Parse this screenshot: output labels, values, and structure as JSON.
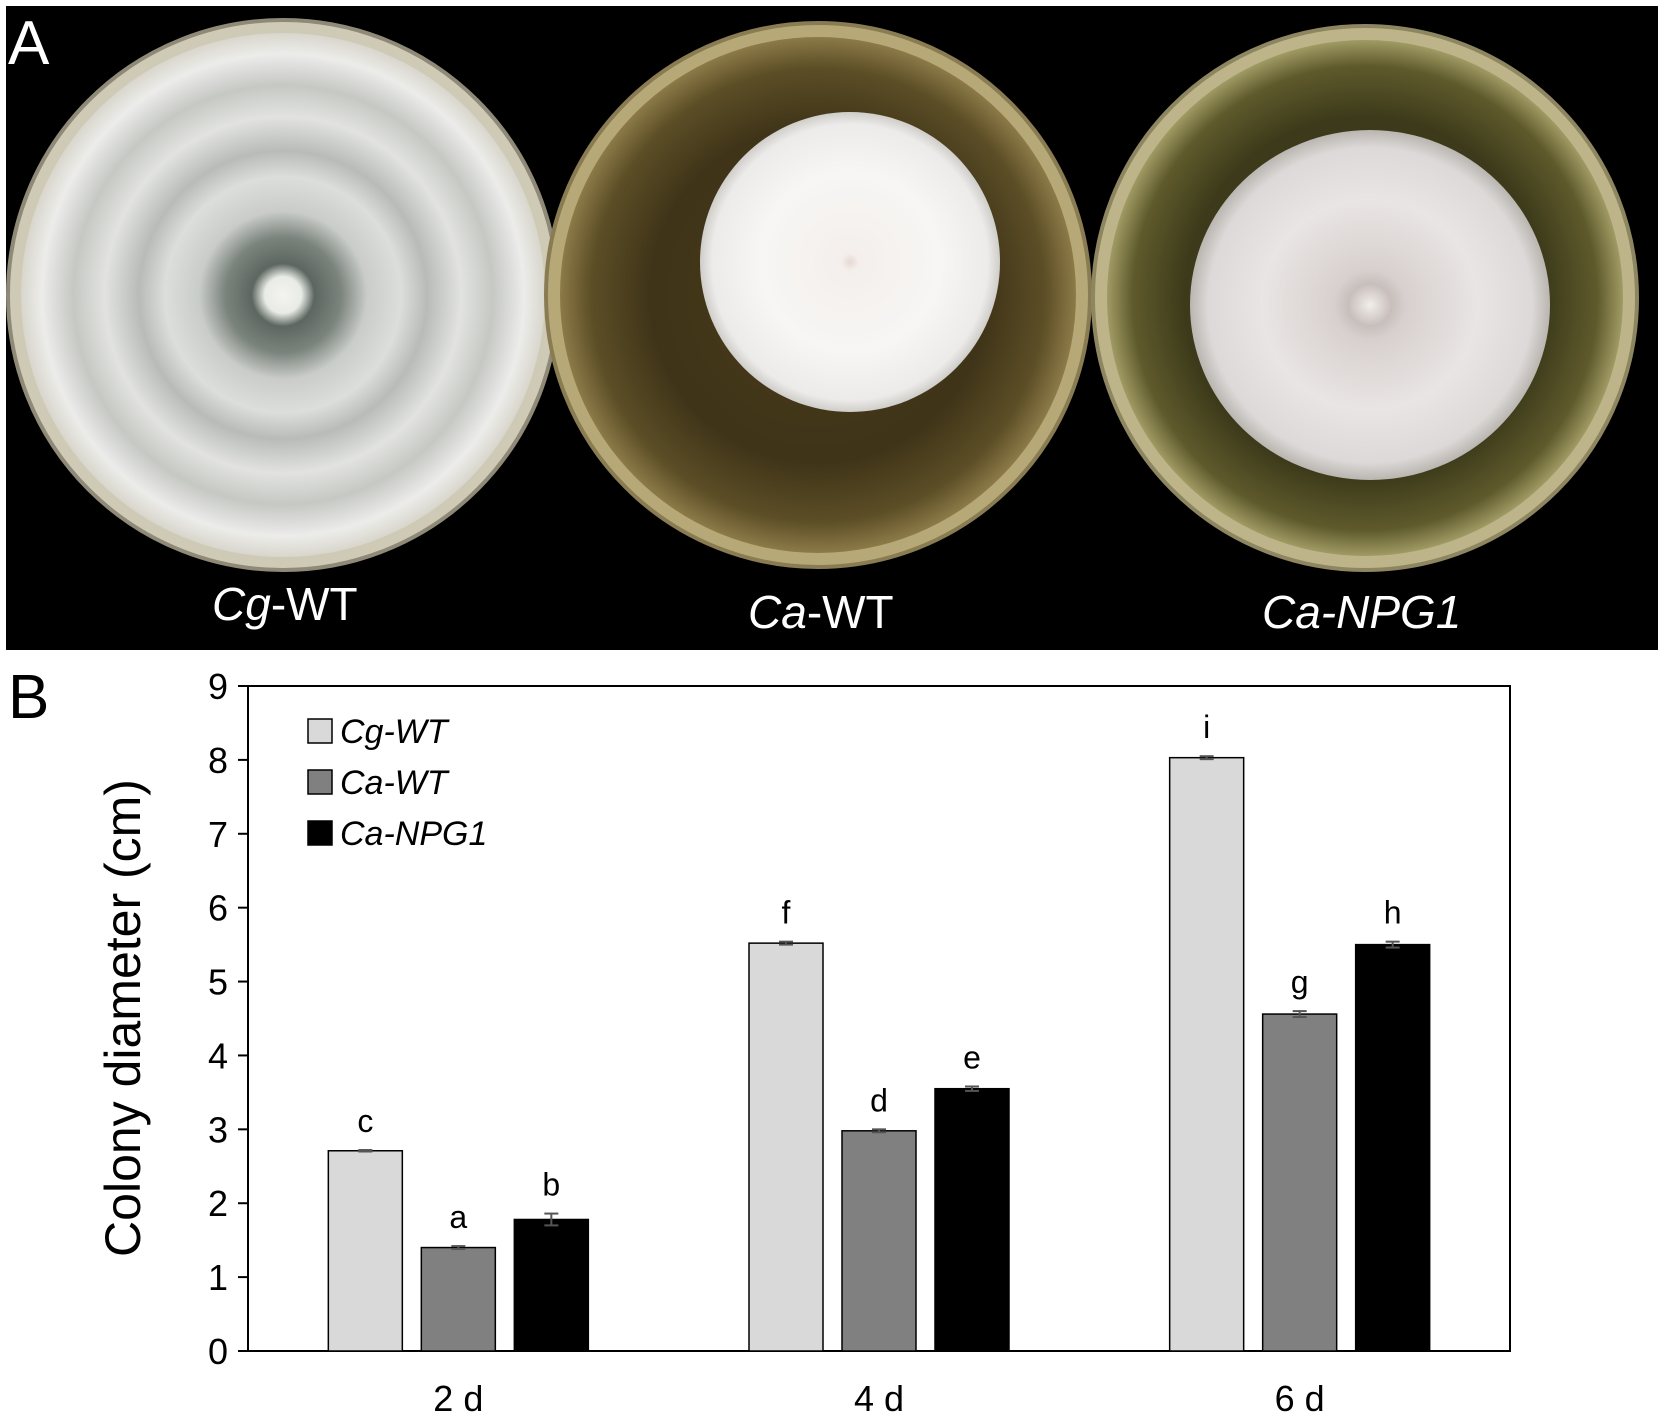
{
  "panel_a": {
    "label": "A",
    "plates": [
      {
        "italic": "Cg",
        "rest": "-WT"
      },
      {
        "italic": "Ca",
        "rest": "-WT"
      },
      {
        "italic": "Ca-NPG1",
        "rest": ""
      }
    ]
  },
  "panel_b": {
    "label": "B"
  },
  "chart_data": {
    "type": "bar",
    "ylabel": "Colony diameter (cm)",
    "ylim": [
      0,
      9
    ],
    "yticks": [
      0,
      1,
      2,
      3,
      4,
      5,
      6,
      7,
      8,
      9
    ],
    "categories": [
      "2 d",
      "4 d",
      "6 d"
    ],
    "legend_position": "top-left",
    "grid": false,
    "series": [
      {
        "name": "Cg-WT",
        "color": "#d9d9d9",
        "values": [
          2.71,
          5.52,
          8.03
        ],
        "errors": [
          0.01,
          0.02,
          0.02
        ],
        "labels": [
          "c",
          "f",
          "i"
        ]
      },
      {
        "name": "Ca-WT",
        "color": "#808080",
        "values": [
          1.4,
          2.98,
          4.56
        ],
        "errors": [
          0.02,
          0.02,
          0.04
        ],
        "labels": [
          "a",
          "d",
          "g"
        ]
      },
      {
        "name": "Ca-NPG1",
        "color": "#000000",
        "values": [
          1.78,
          3.55,
          5.5
        ],
        "errors": [
          0.08,
          0.03,
          0.04
        ],
        "labels": [
          "b",
          "e",
          "h"
        ]
      }
    ]
  }
}
